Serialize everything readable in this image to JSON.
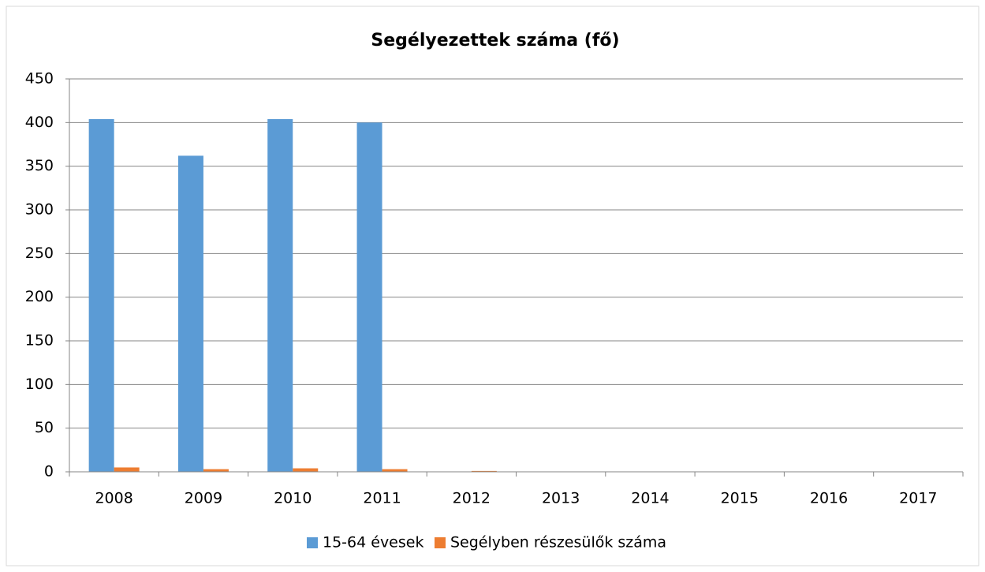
{
  "chart_data": {
    "type": "bar",
    "title": "Segélyezettek száma (fő)",
    "categories": [
      "2008",
      "2009",
      "2010",
      "2011",
      "2012",
      "2013",
      "2014",
      "2015",
      "2016",
      "2017"
    ],
    "series": [
      {
        "name": "15-64 évesek",
        "color": "#5b9bd5",
        "values": [
          404,
          362,
          404,
          400,
          null,
          null,
          null,
          null,
          null,
          null
        ]
      },
      {
        "name": "Segélyben részesülők száma",
        "color": "#ed7d31",
        "values": [
          5,
          3,
          4,
          3,
          1,
          null,
          null,
          null,
          null,
          null
        ]
      }
    ],
    "ylim": [
      0,
      450
    ],
    "yticks": [
      0,
      50,
      100,
      150,
      200,
      250,
      300,
      350,
      400,
      450
    ],
    "grid": true,
    "legend": "bottom"
  }
}
